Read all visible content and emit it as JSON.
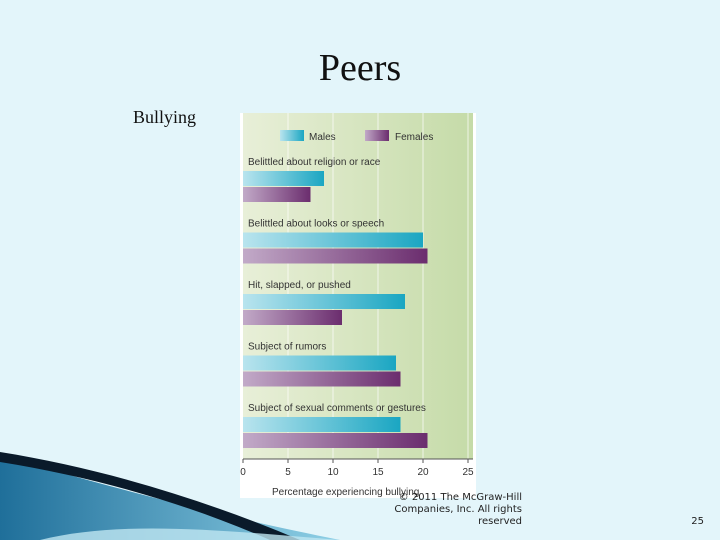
{
  "slide": {
    "title": "Peers",
    "subtitle": "Bullying",
    "copyright": "© 2011 The McGraw-Hill Companies, Inc. All rights reserved",
    "page_number": "25"
  },
  "colors": {
    "males": "#1aa6c2",
    "females": "#6b2d6e",
    "plot_bg_left": "#e8efd8",
    "plot_bg_right": "#c5dba8",
    "background": "#e3f5fa"
  },
  "chart_data": {
    "type": "bar",
    "orientation": "horizontal",
    "categories": [
      "Belittled about religion or race",
      "Belittled about looks or speech",
      "Hit, slapped, or pushed",
      "Subject of rumors",
      "Subject of sexual comments or gestures"
    ],
    "series": [
      {
        "name": "Males",
        "values": [
          9,
          20,
          18,
          17,
          17.5
        ]
      },
      {
        "name": "Females",
        "values": [
          7.5,
          20.5,
          11,
          17.5,
          20.5
        ]
      }
    ],
    "xlabel": "Percentage experiencing bullying",
    "xlim": [
      0,
      25
    ],
    "xticks": [
      "0",
      "5",
      "10",
      "15",
      "20",
      "25"
    ],
    "legend": "top",
    "grid": true
  }
}
